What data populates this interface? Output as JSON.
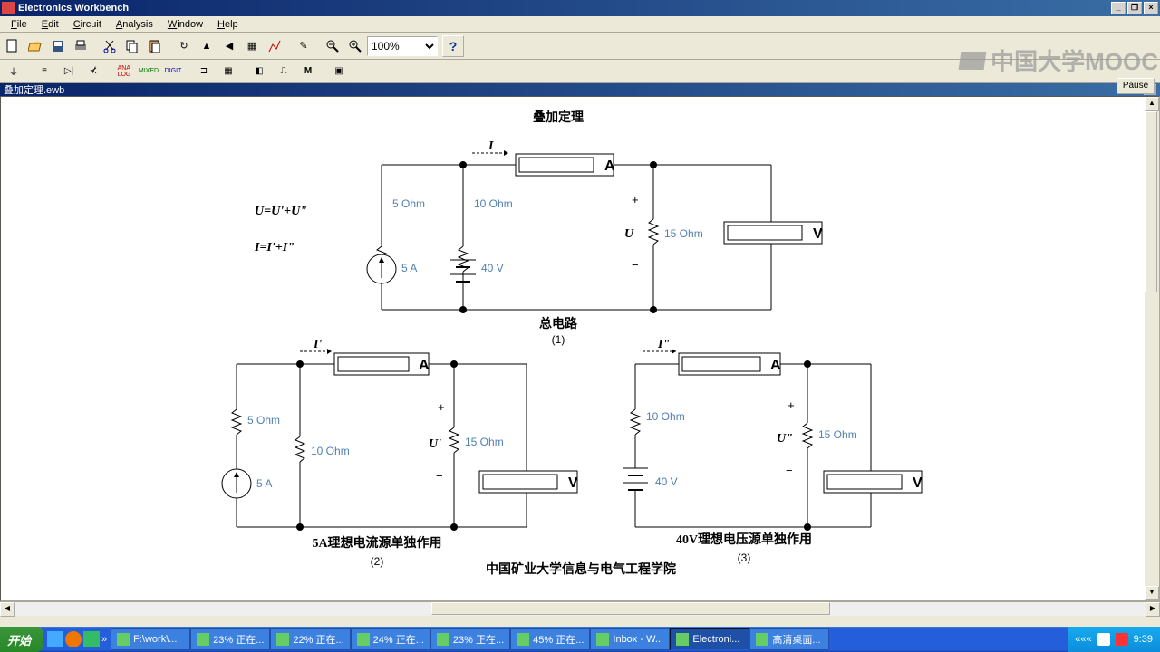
{
  "app": {
    "title": "Electronics Workbench",
    "doc": "叠加定理.ewb"
  },
  "menu": [
    "File",
    "Edit",
    "Circuit",
    "Analysis",
    "Window",
    "Help"
  ],
  "zoom": "100%",
  "pause": "Pause",
  "watermark": "中国大学MOOC",
  "canvas": {
    "title": "叠加定理",
    "eq1": "U=U'+U\"",
    "eq2": "I=I'+I\"",
    "c1": {
      "label": "总电路",
      "sub": "(1)",
      "I": "I",
      "r5": "5  Ohm",
      "r10": "10  Ohm",
      "r15": "15  Ohm",
      "src_i": "5 A",
      "src_v": "40 V",
      "U": "U",
      "plus": "+",
      "minus": "−"
    },
    "c2": {
      "label": "5A理想电流源单独作用",
      "sub": "(2)",
      "I": "I'",
      "r5": "5  Ohm",
      "r10": "10  Ohm",
      "r15": "15 Ohm",
      "src_i": "5 A",
      "U": "U'",
      "plus": "+",
      "minus": "−"
    },
    "c3": {
      "label": "40V理想电压源单独作用",
      "sub": "(3)",
      "I": "I\"",
      "r10": "10  Ohm",
      "r15": "15 Ohm",
      "src_v": "40 V",
      "U": "U\"",
      "plus": "+",
      "minus": "−"
    },
    "footer": "中国矿业大学信息与电气工程学院"
  },
  "taskbar": {
    "start": "开始",
    "items": [
      {
        "t": "F:\\work\\..."
      },
      {
        "t": "23% 正在..."
      },
      {
        "t": "22% 正在..."
      },
      {
        "t": "24% 正在..."
      },
      {
        "t": "23% 正在..."
      },
      {
        "t": "45% 正在..."
      },
      {
        "t": "Inbox - W..."
      },
      {
        "t": "Electroni...",
        "active": true
      },
      {
        "t": "高清桌面..."
      }
    ],
    "time": "9:39"
  }
}
